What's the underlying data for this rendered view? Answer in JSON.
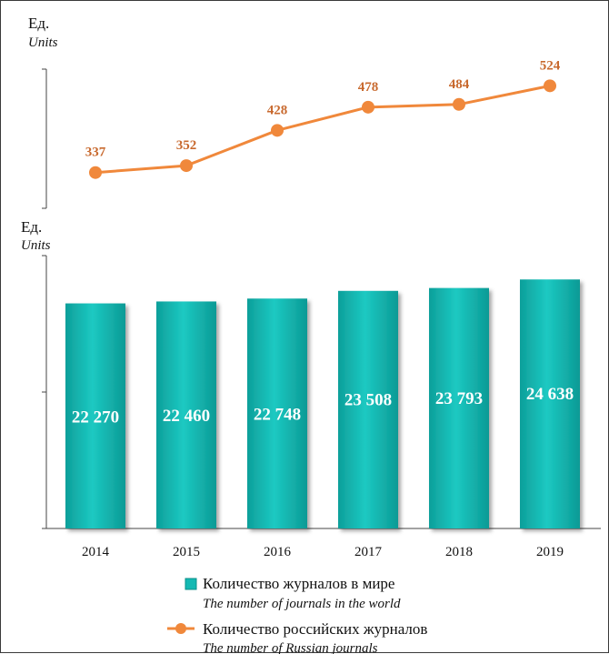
{
  "chart_data": [
    {
      "type": "line",
      "unit_label_ru": "Ед.",
      "unit_label_en": "Units",
      "categories": [
        "2014",
        "2015",
        "2016",
        "2017",
        "2018",
        "2019"
      ],
      "series": [
        {
          "name_ru": "Количество российских журналов",
          "name_en": "The number of Russian journals",
          "values": [
            337,
            352,
            428,
            478,
            484,
            524
          ],
          "labels": [
            "337",
            "352",
            "428",
            "478",
            "484",
            "524"
          ],
          "color": "#f0883b",
          "label_color": "#c8692e"
        }
      ],
      "ylim": [
        260,
        560
      ]
    },
    {
      "type": "bar",
      "unit_label_ru": "Ед.",
      "unit_label_en": "Units",
      "categories": [
        "2014",
        "2015",
        "2016",
        "2017",
        "2018",
        "2019"
      ],
      "series": [
        {
          "name_ru": "Количество журналов в мире",
          "name_en": "The number of journals in the world",
          "values": [
            22270,
            22460,
            22748,
            23508,
            23793,
            24638
          ],
          "labels": [
            "22 270",
            "22 460",
            "22 748",
            "23 508",
            "23 793",
            "24 638"
          ],
          "color": "#14b9b3"
        }
      ],
      "ylim": [
        0,
        27000
      ]
    }
  ]
}
